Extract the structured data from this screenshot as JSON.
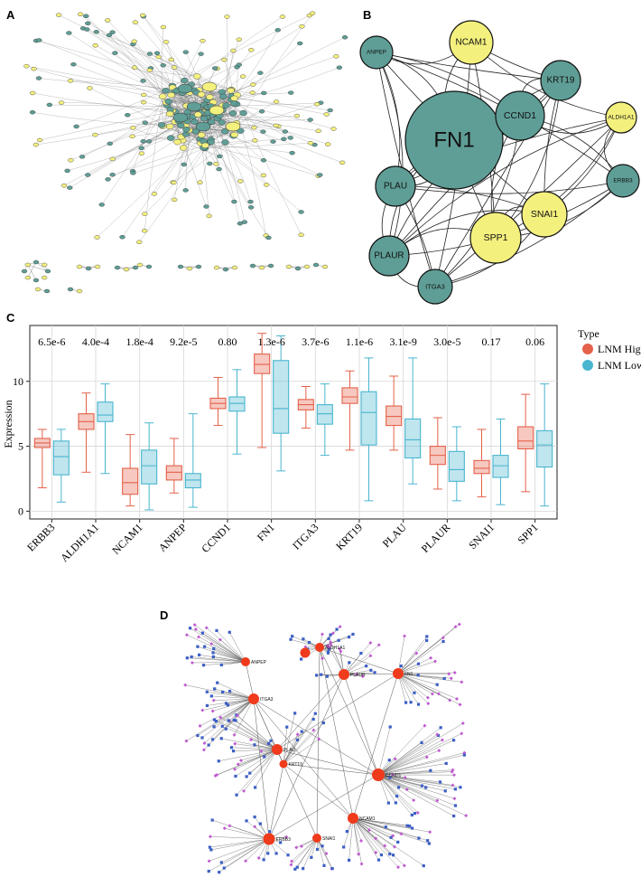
{
  "colors": {
    "teal": "#5f9e96",
    "yellow": "#f4f07e",
    "lnm_high": "#e4614a",
    "lnm_low": "#49b5cf",
    "hub_red": "#f03a1c",
    "square_blue": "#3c5fc4",
    "diamond_magenta": "#c05ad0",
    "edge_gray": "#555555"
  },
  "panels": {
    "a": {
      "letter": "A",
      "icon": "large-ppi-network"
    },
    "b": {
      "letter": "B",
      "nodes": [
        {
          "label": "FN1",
          "color": "teal"
        },
        {
          "label": "NCAM1",
          "color": "yellow"
        },
        {
          "label": "ANPEP",
          "color": "teal"
        },
        {
          "label": "KRT19",
          "color": "teal"
        },
        {
          "label": "CCND1",
          "color": "teal"
        },
        {
          "label": "ALDH1A1",
          "color": "yellow"
        },
        {
          "label": "ERBB3",
          "color": "teal"
        },
        {
          "label": "PLAU",
          "color": "teal"
        },
        {
          "label": "SNAI1",
          "color": "yellow"
        },
        {
          "label": "SPP1",
          "color": "yellow"
        },
        {
          "label": "PLAUR",
          "color": "teal"
        },
        {
          "label": "ITGA3",
          "color": "teal"
        }
      ]
    },
    "c": {
      "letter": "C"
    },
    "d": {
      "letter": "D",
      "hubs": [
        "ANPEP",
        "ALDH1A1",
        "PLAUR",
        "FN1",
        "ITGA3",
        "PLAU",
        "KRT19",
        "CCND1",
        "NCAM1",
        "ERBB3",
        "SNAI1"
      ]
    }
  },
  "chart_data": {
    "type": "boxplot",
    "ylabel": "Expression",
    "ylim": [
      -0.6,
      14.3
    ],
    "yticks": [
      0,
      5,
      10
    ],
    "grid": true,
    "legend": {
      "title": "Type",
      "entries": [
        "LNM High",
        "LNM Low"
      ],
      "placement": "right"
    },
    "categories": [
      "ERBB3",
      "ALDH1A1",
      "NCAM1",
      "ANPEP",
      "CCND1",
      "FN1",
      "ITGA3",
      "KRT19",
      "PLAU",
      "PLAUR",
      "SNAI1",
      "SPP1"
    ],
    "pvalues": [
      "6.5e-6",
      "4.0e-4",
      "1.8e-4",
      "9.2e-5",
      "0.80",
      "1.3e-6",
      "3.7e-6",
      "1.1e-6",
      "3.1e-9",
      "3.0e-5",
      "0.17",
      "0.06"
    ],
    "series": [
      {
        "name": "LNM High",
        "boxes": [
          {
            "min": 1.8,
            "q1": 4.9,
            "median": 5.25,
            "q3": 5.6,
            "max": 6.3
          },
          {
            "min": 3.0,
            "q1": 6.3,
            "median": 6.9,
            "q3": 7.5,
            "max": 9.1
          },
          {
            "min": 0.4,
            "q1": 1.3,
            "median": 2.2,
            "q3": 3.3,
            "max": 5.9
          },
          {
            "min": 1.4,
            "q1": 2.4,
            "median": 3.0,
            "q3": 3.5,
            "max": 5.6
          },
          {
            "min": 6.6,
            "q1": 7.9,
            "median": 8.3,
            "q3": 8.7,
            "max": 10.3
          },
          {
            "min": 4.9,
            "q1": 10.6,
            "median": 11.3,
            "q3": 12.1,
            "max": 13.7
          },
          {
            "min": 6.4,
            "q1": 7.8,
            "median": 8.2,
            "q3": 8.6,
            "max": 9.6
          },
          {
            "min": 4.7,
            "q1": 8.3,
            "median": 8.8,
            "q3": 9.5,
            "max": 10.8
          },
          {
            "min": 4.7,
            "q1": 6.6,
            "median": 7.3,
            "q3": 8.1,
            "max": 10.4
          },
          {
            "min": 1.7,
            "q1": 3.6,
            "median": 4.3,
            "q3": 5.0,
            "max": 7.2
          },
          {
            "min": 1.1,
            "q1": 2.9,
            "median": 3.3,
            "q3": 3.9,
            "max": 6.3
          },
          {
            "min": 1.5,
            "q1": 4.8,
            "median": 5.4,
            "q3": 6.5,
            "max": 9.0
          }
        ]
      },
      {
        "name": "LNM Low",
        "boxes": [
          {
            "min": 0.7,
            "q1": 2.8,
            "median": 4.2,
            "q3": 5.4,
            "max": 6.3
          },
          {
            "min": 2.9,
            "q1": 6.9,
            "median": 7.4,
            "q3": 8.4,
            "max": 9.8
          },
          {
            "min": 0.1,
            "q1": 2.1,
            "median": 3.5,
            "q3": 4.7,
            "max": 6.8
          },
          {
            "min": 0.3,
            "q1": 1.8,
            "median": 2.4,
            "q3": 2.9,
            "max": 7.5
          },
          {
            "min": 4.4,
            "q1": 7.7,
            "median": 8.3,
            "q3": 8.8,
            "max": 10.9
          },
          {
            "min": 3.1,
            "q1": 6.0,
            "median": 7.9,
            "q3": 11.6,
            "max": 13.5
          },
          {
            "min": 4.3,
            "q1": 6.7,
            "median": 7.5,
            "q3": 8.2,
            "max": 9.8
          },
          {
            "min": 0.8,
            "q1": 5.1,
            "median": 7.6,
            "q3": 9.2,
            "max": 11.8
          },
          {
            "min": 2.1,
            "q1": 4.1,
            "median": 5.5,
            "q3": 7.1,
            "max": 11.8
          },
          {
            "min": 0.8,
            "q1": 2.3,
            "median": 3.2,
            "q3": 4.6,
            "max": 6.5
          },
          {
            "min": 0.5,
            "q1": 2.6,
            "median": 3.5,
            "q3": 4.3,
            "max": 7.1
          },
          {
            "min": 0.4,
            "q1": 3.4,
            "median": 5.1,
            "q3": 6.2,
            "max": 9.8
          }
        ]
      }
    ]
  }
}
